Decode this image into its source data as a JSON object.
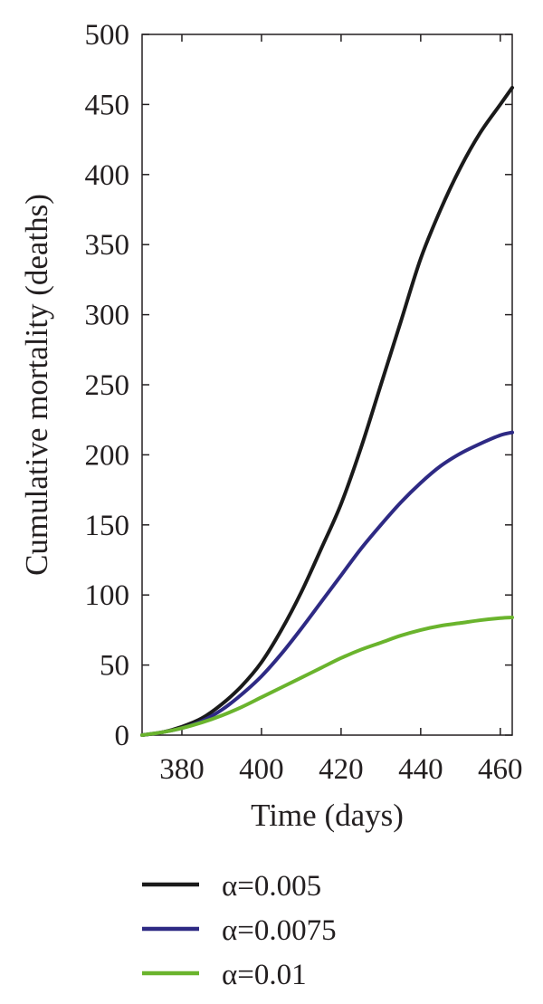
{
  "chart_data": {
    "type": "line",
    "xlabel": "Time (days)",
    "ylabel": "Cumulative mortality (deaths)",
    "xlim": [
      370,
      463
    ],
    "ylim": [
      0,
      500
    ],
    "xticks": [
      380,
      400,
      420,
      440,
      460
    ],
    "yticks": [
      0,
      50,
      100,
      150,
      200,
      250,
      300,
      350,
      400,
      450,
      500
    ],
    "grid": false,
    "legend_position": "bottom",
    "series": [
      {
        "name": "α=0.005",
        "color": "#1a1a1a",
        "x": [
          370,
          375,
          380,
          385,
          390,
          395,
          400,
          405,
          410,
          415,
          420,
          425,
          430,
          435,
          440,
          445,
          450,
          455,
          460,
          463
        ],
        "y": [
          0,
          2,
          6,
          12,
          22,
          35,
          52,
          75,
          102,
          133,
          165,
          205,
          250,
          295,
          340,
          375,
          405,
          430,
          450,
          462
        ]
      },
      {
        "name": "α=0.0075",
        "color": "#2e2a84",
        "x": [
          370,
          375,
          380,
          385,
          390,
          395,
          400,
          405,
          410,
          415,
          420,
          425,
          430,
          435,
          440,
          445,
          450,
          455,
          460,
          463
        ],
        "y": [
          0,
          2,
          5,
          10,
          18,
          29,
          42,
          58,
          76,
          95,
          114,
          133,
          150,
          166,
          180,
          192,
          201,
          208,
          214,
          216
        ]
      },
      {
        "name": "α=0.01",
        "color": "#6ab42d",
        "x": [
          370,
          375,
          380,
          385,
          390,
          395,
          400,
          405,
          410,
          415,
          420,
          425,
          430,
          435,
          440,
          445,
          450,
          455,
          460,
          463
        ],
        "y": [
          0,
          2,
          5,
          9,
          14,
          20,
          27,
          34,
          41,
          48,
          55,
          61,
          66,
          71,
          75,
          78,
          80,
          82,
          83.5,
          84
        ]
      }
    ]
  }
}
